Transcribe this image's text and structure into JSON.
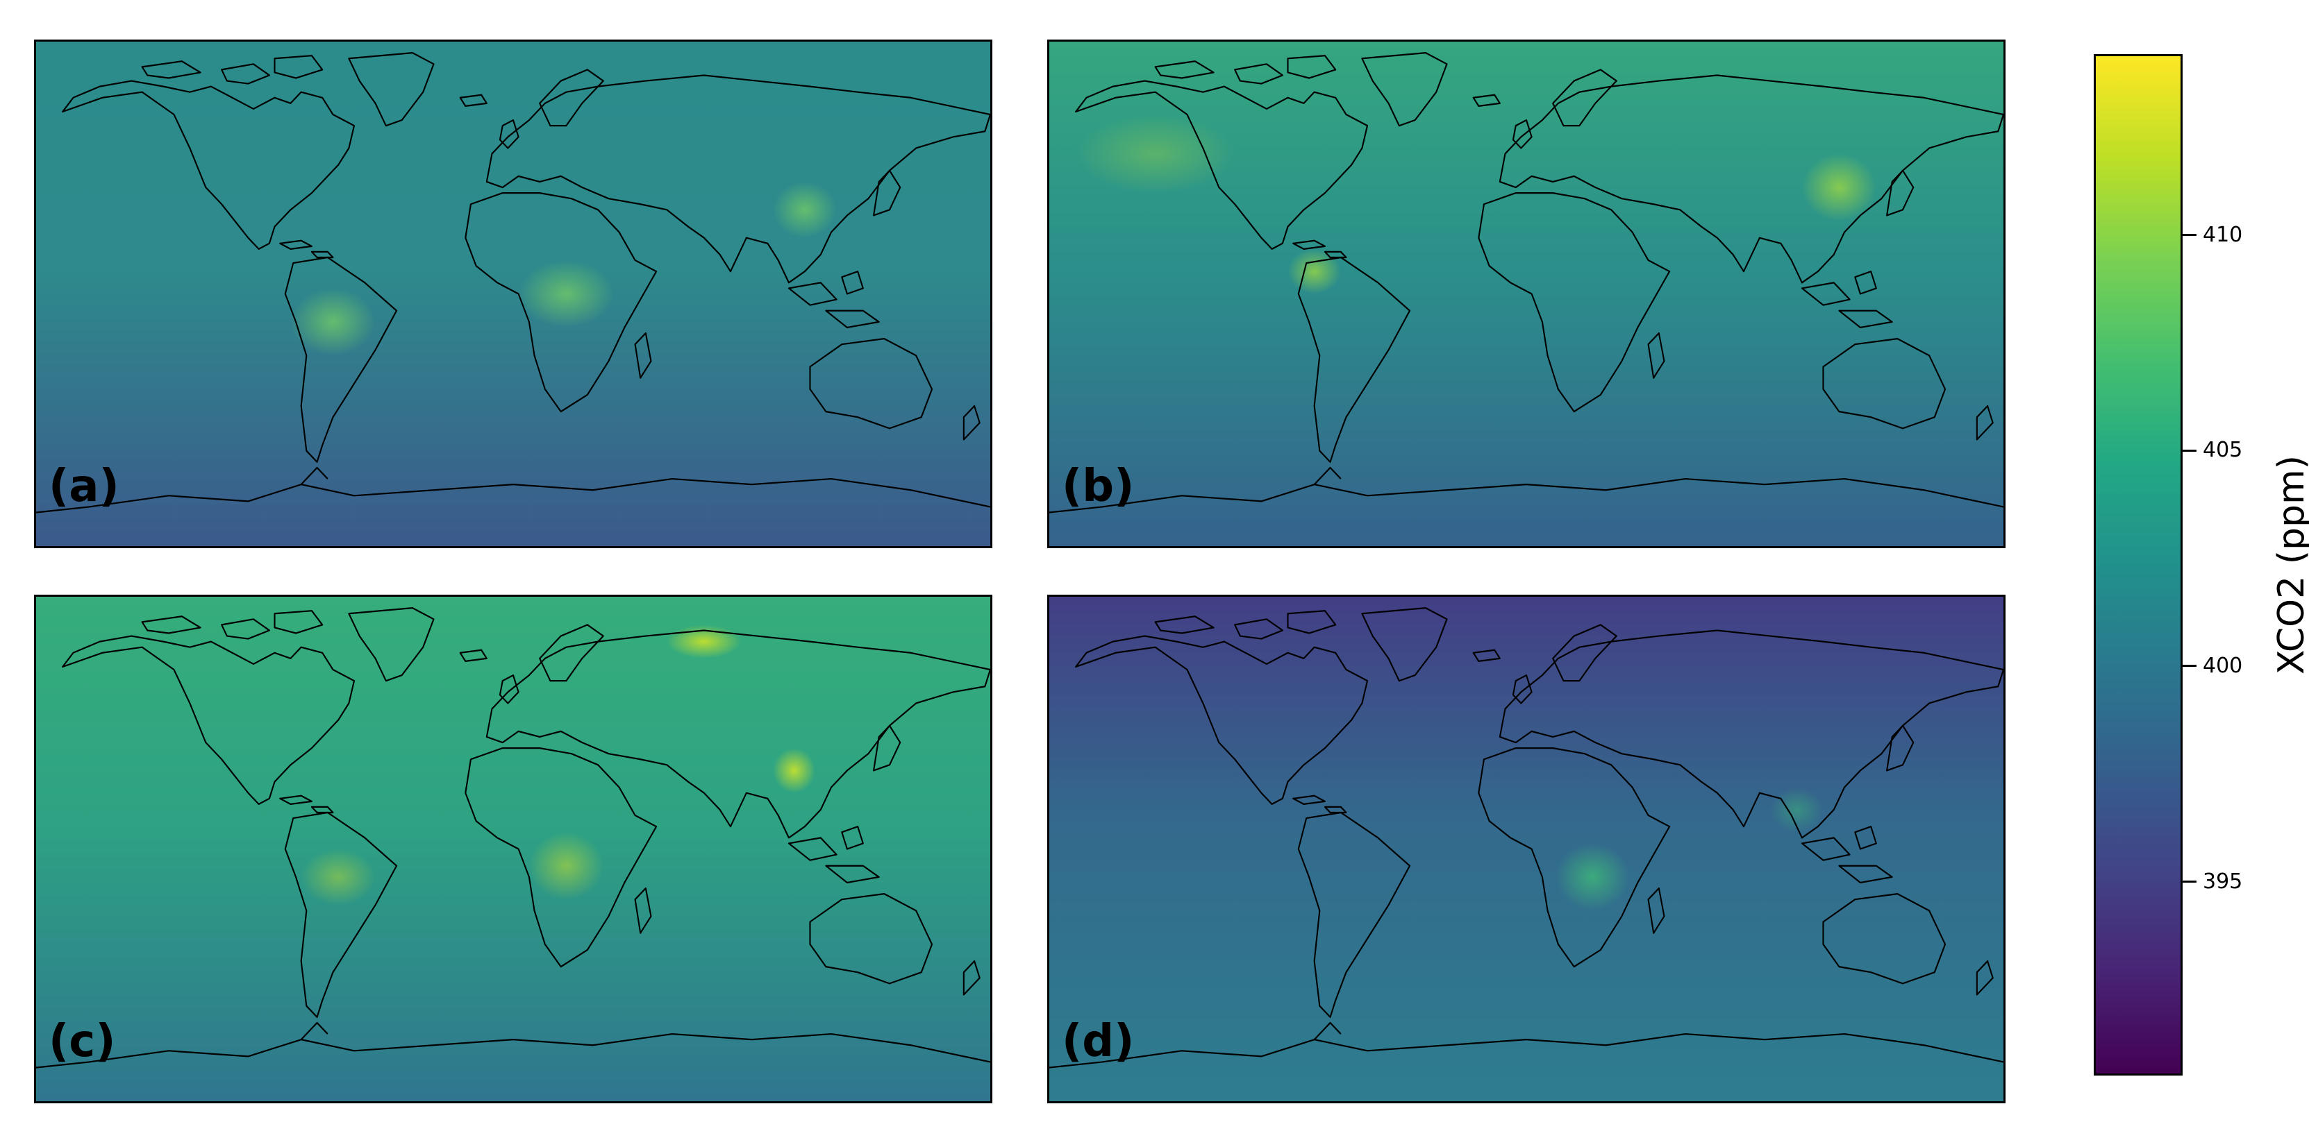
{
  "panels": [
    {
      "label": "(a)",
      "colors": {
        "north": "#2c8c8c",
        "mid": "#2e8a8c",
        "south": "#3b5a8c",
        "hotspot": "#6ac36b"
      }
    },
    {
      "label": "(b)",
      "colors": {
        "north": "#35a67f",
        "mid": "#2b8f8b",
        "south": "#35638d",
        "hotspot": "#8fd04b"
      }
    },
    {
      "label": "(c)",
      "colors": {
        "north": "#36ad7b",
        "mid": "#2ea283",
        "south": "#2f768e",
        "hotspot": "#c2e02f"
      }
    },
    {
      "label": "(d)",
      "colors": {
        "north": "#433e85",
        "mid": "#336a8d",
        "south": "#2e7d8e",
        "hotspot": "#3fb978"
      }
    }
  ],
  "colorbar": {
    "title": "XCO2 (ppm)",
    "ticks": [
      {
        "label": "395",
        "value": 395
      },
      {
        "label": "400",
        "value": 400
      },
      {
        "label": "405",
        "value": 405
      },
      {
        "label": "410",
        "value": 410
      }
    ],
    "range": [
      390.5,
      414.2
    ],
    "colormap": "viridis"
  }
}
